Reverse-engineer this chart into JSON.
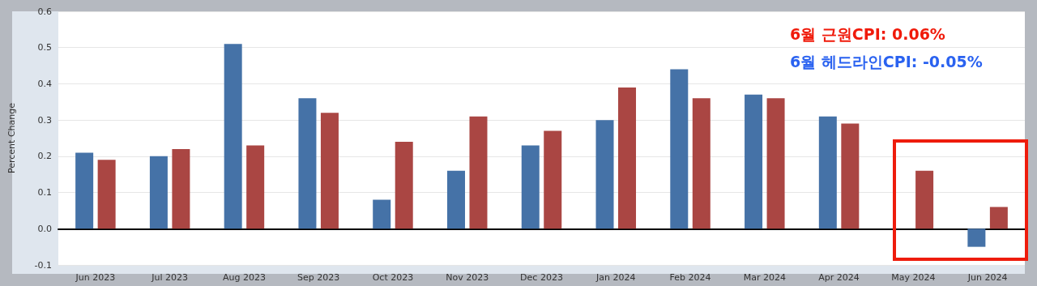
{
  "chart_data": {
    "type": "bar",
    "ylabel": "Percent Change",
    "categories": [
      "Jun 2023",
      "Jul 2023",
      "Aug 2023",
      "Sep 2023",
      "Oct 2023",
      "Nov 2023",
      "Dec 2023",
      "Jan 2024",
      "Feb 2024",
      "Mar 2024",
      "Apr 2024",
      "May 2024",
      "Jun 2024"
    ],
    "series": [
      {
        "color": "#4572a7",
        "values": [
          0.21,
          0.2,
          0.51,
          0.36,
          0.08,
          0.16,
          0.23,
          0.3,
          0.44,
          0.37,
          0.31,
          0.0,
          -0.05
        ]
      },
      {
        "color": "#aa4643",
        "values": [
          0.19,
          0.22,
          0.23,
          0.32,
          0.24,
          0.31,
          0.27,
          0.39,
          0.36,
          0.36,
          0.29,
          0.16,
          0.06
        ]
      }
    ],
    "ylim": [
      -0.1,
      0.6
    ],
    "yticks": [
      {
        "value": -0.1,
        "label": "-0.1"
      },
      {
        "value": 0,
        "label": "0.0"
      },
      {
        "value": 0.1,
        "label": "0.1"
      },
      {
        "value": 0.2,
        "label": "0.2"
      },
      {
        "value": 0.3,
        "label": "0.3"
      },
      {
        "value": 0.4,
        "label": "0.4"
      },
      {
        "value": 0.5,
        "label": "0.5"
      },
      {
        "value": 0.6,
        "label": "0.6"
      }
    ],
    "grid": "y",
    "annotations": [
      "6월 근원CPI: 0.06%",
      "6월 헤드라인CPI: -0.05%"
    ]
  }
}
